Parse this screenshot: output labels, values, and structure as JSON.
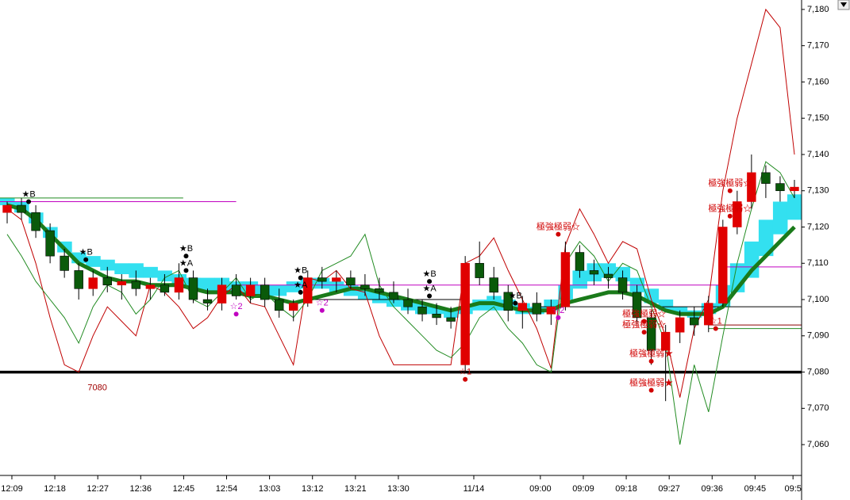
{
  "chart_data": {
    "type": "candlestick",
    "xlim": [
      -0.5,
      55.5
    ],
    "ylim": [
      7051.5,
      7182.6
    ],
    "yticks": [
      {
        "value": 7060,
        "label": "7,060"
      },
      {
        "value": 7070,
        "label": "7,070"
      },
      {
        "value": 7080,
        "label": "7,080"
      },
      {
        "value": 7090,
        "label": "7,090"
      },
      {
        "value": 7100,
        "label": "7,100"
      },
      {
        "value": 7110,
        "label": "7,110"
      },
      {
        "value": 7120,
        "label": "7,120"
      },
      {
        "value": 7130,
        "label": "7,130"
      },
      {
        "value": 7140,
        "label": "7,140"
      },
      {
        "value": 7150,
        "label": "7,150"
      },
      {
        "value": 7160,
        "label": "7,160"
      },
      {
        "value": 7170,
        "label": "7,170"
      },
      {
        "value": 7180,
        "label": "7,180"
      }
    ],
    "xticks": [
      {
        "value": 0.33,
        "label": "12:09"
      },
      {
        "value": 3.33,
        "label": "12:18"
      },
      {
        "value": 6.33,
        "label": "12:27"
      },
      {
        "value": 9.33,
        "label": "12:36"
      },
      {
        "value": 12.33,
        "label": "12:45"
      },
      {
        "value": 15.33,
        "label": "12:54"
      },
      {
        "value": 18.33,
        "label": "13:03"
      },
      {
        "value": 21.33,
        "label": "13:12"
      },
      {
        "value": 24.33,
        "label": "13:21"
      },
      {
        "value": 27.33,
        "label": "13:30"
      },
      {
        "value": 32.6,
        "label": "11/14"
      },
      {
        "value": 37.25,
        "label": "09:00"
      },
      {
        "value": 40.25,
        "label": "09:09"
      },
      {
        "value": 43.25,
        "label": "09:18"
      },
      {
        "value": 46.25,
        "label": "09:27"
      },
      {
        "value": 49.25,
        "label": "09:36"
      },
      {
        "value": 52.25,
        "label": "09:45"
      },
      {
        "value": 54.9,
        "label": "09:5"
      }
    ],
    "up_color": "#e00000",
    "down_color": "#0a5a0a",
    "ohlc": [
      [
        7124,
        7127,
        7121,
        7126
      ],
      [
        7126,
        7128,
        7122,
        7124
      ],
      [
        7124,
        7126,
        7117,
        7119
      ],
      [
        7119,
        7121,
        7110,
        7112
      ],
      [
        7112,
        7114,
        7106,
        7108
      ],
      [
        7108,
        7110,
        7100,
        7103
      ],
      [
        7103,
        7108,
        7101,
        7106
      ],
      [
        7106,
        7109,
        7102,
        7104
      ],
      [
        7104,
        7107,
        7100,
        7105
      ],
      [
        7105,
        7108,
        7101,
        7103
      ],
      [
        7103,
        7106,
        7100,
        7104
      ],
      [
        7104,
        7107,
        7101,
        7102
      ],
      [
        7102,
        7110,
        7100,
        7106
      ],
      [
        7106,
        7108,
        7099,
        7100
      ],
      [
        7100,
        7103,
        7097,
        7099
      ],
      [
        7099,
        7106,
        7097,
        7104
      ],
      [
        7104,
        7107,
        7100,
        7101
      ],
      [
        7101,
        7106,
        7099,
        7104
      ],
      [
        7104,
        7106,
        7098,
        7100
      ],
      [
        7100,
        7103,
        7095,
        7097
      ],
      [
        7097,
        7100,
        7094,
        7099
      ],
      [
        7099,
        7108,
        7098,
        7106
      ],
      [
        7106,
        7109,
        7103,
        7105
      ],
      [
        7105,
        7108,
        7102,
        7106
      ],
      [
        7106,
        7108,
        7103,
        7104
      ],
      [
        7104,
        7107,
        7101,
        7103
      ],
      [
        7103,
        7106,
        7100,
        7102
      ],
      [
        7102,
        7105,
        7099,
        7100
      ],
      [
        7100,
        7103,
        7096,
        7098
      ],
      [
        7098,
        7100,
        7094,
        7096
      ],
      [
        7096,
        7099,
        7093,
        7095
      ],
      [
        7095,
        7098,
        7092,
        7094
      ],
      [
        7082,
        7112,
        7080,
        7110
      ],
      [
        7110,
        7116,
        7104,
        7106
      ],
      [
        7106,
        7109,
        7100,
        7102
      ],
      [
        7102,
        7104,
        7094,
        7097
      ],
      [
        7097,
        7101,
        7092,
        7099
      ],
      [
        7099,
        7102,
        7094,
        7096
      ],
      [
        7096,
        7100,
        7093,
        7098
      ],
      [
        7098,
        7116,
        7097,
        7113
      ],
      [
        7113,
        7115,
        7106,
        7108
      ],
      [
        7108,
        7111,
        7104,
        7107
      ],
      [
        7107,
        7109,
        7103,
        7106
      ],
      [
        7106,
        7108,
        7100,
        7102
      ],
      [
        7102,
        7104,
        7093,
        7095
      ],
      [
        7095,
        7097,
        7082,
        7086
      ],
      [
        7086,
        7093,
        7072,
        7091
      ],
      [
        7091,
        7097,
        7088,
        7095
      ],
      [
        7095,
        7098,
        7090,
        7093
      ],
      [
        7093,
        7101,
        7091,
        7099
      ],
      [
        7099,
        7122,
        7098,
        7120
      ],
      [
        7120,
        7130,
        7118,
        7127
      ],
      [
        7127,
        7140,
        7125,
        7135
      ],
      [
        7135,
        7137,
        7128,
        7132
      ],
      [
        7132,
        7134,
        7127,
        7130
      ],
      [
        7130,
        7133,
        7128,
        7131
      ]
    ],
    "cloud": {
      "color": "#33e0f0",
      "top": [
        7128,
        7127,
        7124,
        7120,
        7116,
        7113,
        7112,
        7111,
        7110,
        7110,
        7109,
        7108,
        7107,
        7106,
        7106,
        7106,
        7105,
        7105,
        7104,
        7104,
        7105,
        7106,
        7106,
        7105,
        7104,
        7103,
        7102,
        7101,
        7100,
        7099,
        7098,
        7097,
        7098,
        7100,
        7101,
        7100,
        7099,
        7098,
        7100,
        7104,
        7108,
        7110,
        7110,
        7109,
        7106,
        7103,
        7100,
        7098,
        7097,
        7099,
        7104,
        7110,
        7116,
        7122,
        7127,
        7129
      ],
      "bottom": [
        7126,
        7124,
        7121,
        7117,
        7113,
        7110,
        7109,
        7108,
        7107,
        7106,
        7106,
        7105,
        7104,
        7103,
        7102,
        7102,
        7102,
        7101,
        7101,
        7101,
        7102,
        7103,
        7103,
        7102,
        7101,
        7100,
        7099,
        7098,
        7097,
        7096,
        7096,
        7095,
        7096,
        7097,
        7097,
        7097,
        7096,
        7096,
        7097,
        7100,
        7103,
        7105,
        7106,
        7105,
        7102,
        7099,
        7097,
        7096,
        7095,
        7096,
        7098,
        7102,
        7106,
        7112,
        7118,
        7122
      ]
    },
    "lines": [
      {
        "color": "#1a7a1a",
        "values": [
          7126,
          7125,
          7122,
          7118,
          7114,
          7110,
          7108,
          7106,
          7105,
          7105,
          7104,
          7104,
          7104,
          7103,
          7102,
          7102,
          7102,
          7101,
          7101,
          7100,
          7099,
          7100,
          7101,
          7102,
          7103,
          7103,
          7102,
          7101,
          7100,
          7099,
          7098,
          7097,
          7098,
          7099,
          7099,
          7098,
          7097,
          7097,
          7097,
          7099,
          7100,
          7101,
          7102,
          7102,
          7101,
          7099,
          7097,
          7096,
          7096,
          7096,
          7098,
          7103,
          7108,
          7112,
          7116,
          7120
        ]
      },
      {
        "color": "#c00000",
        "values": [
          7125,
          7122,
          7110,
          7095,
          7082,
          7080,
          7090,
          7098,
          7094,
          7090,
          7104,
          7102,
          7098,
          7092,
          7095,
          7101,
          7104,
          7099,
          7098,
          7090,
          7082,
          7106,
          7105,
          7108,
          7103,
          7102,
          7090,
          7082,
          7082,
          7082,
          7082,
          7082,
          7110,
          7112,
          7117,
          7108,
          7100,
          7092,
          7081,
          7115,
          7125,
          7118,
          7110,
          7116,
          7114,
          7100,
          7090,
          7073,
          7092,
          7100,
          7130,
          7150,
          7165,
          7180,
          7175,
          7140
        ]
      },
      {
        "color": "#228b22",
        "values": [
          7118,
          7112,
          7105,
          7100,
          7095,
          7088,
          7098,
          7104,
          7102,
          7096,
          7100,
          7106,
          7108,
          7100,
          7098,
          7102,
          7106,
          7100,
          7102,
          7098,
          7095,
          7100,
          7108,
          7110,
          7112,
          7118,
          7104,
          7098,
          7094,
          7090,
          7086,
          7084,
          7088,
          7095,
          7098,
          7092,
          7088,
          7082,
          7080,
          7110,
          7116,
          7112,
          7105,
          7110,
          7108,
          7098,
          7088,
          7060,
          7082,
          7069,
          7090,
          7110,
          7125,
          7138,
          7135,
          7128
        ]
      }
    ],
    "hlines": [
      {
        "value": 7080,
        "color": "#000000",
        "xrange": [
          -0.5,
          55.5
        ]
      },
      {
        "value": 7104,
        "color": "#c000c0",
        "xrange": [
          16,
          50
        ]
      },
      {
        "value": 7100,
        "color": "#000000",
        "xrange": [
          21,
          32
        ]
      },
      {
        "value": 7098,
        "color": "#000000",
        "xrange": [
          37,
          55.5
        ]
      },
      {
        "value": 7093,
        "color": "#8b0000",
        "xrange": [
          49,
          55.5
        ]
      },
      {
        "value": 7092,
        "color": "#228b22",
        "xrange": [
          49,
          55.5
        ]
      },
      {
        "value": 7109,
        "color": "#c000c0",
        "xrange": [
          50,
          55.5
        ]
      },
      {
        "value": 7128,
        "color": "#228b22",
        "xrange": [
          -0.5,
          12.3
        ]
      },
      {
        "value": 7127,
        "color": "#c000c0",
        "xrange": [
          -0.5,
          16
        ]
      }
    ],
    "annotations": [
      {
        "x": 1.5,
        "y": 7127,
        "text": "★B",
        "color": "#000000"
      },
      {
        "x": 5.5,
        "y": 7111,
        "text": "★B",
        "color": "#000000"
      },
      {
        "x": 12.5,
        "y": 7112,
        "text": "★B",
        "color": "#000000"
      },
      {
        "x": 12.5,
        "y": 7108,
        "text": "★A",
        "color": "#000000"
      },
      {
        "x": 20.5,
        "y": 7106,
        "text": "★B",
        "color": "#000000"
      },
      {
        "x": 20.5,
        "y": 7102,
        "text": "★A",
        "color": "#000000"
      },
      {
        "x": 29.5,
        "y": 7105,
        "text": "★B",
        "color": "#000000"
      },
      {
        "x": 29.5,
        "y": 7101,
        "text": "★A",
        "color": "#000000"
      },
      {
        "x": 35.5,
        "y": 7099,
        "text": "★B",
        "color": "#000000"
      },
      {
        "x": 16,
        "y": 7096,
        "text": "☆2",
        "color": "#c000c0"
      },
      {
        "x": 22,
        "y": 7097,
        "text": "☆2",
        "color": "#c000c0"
      },
      {
        "x": 38.5,
        "y": 7095,
        "text": "☆2",
        "color": "#c000c0"
      },
      {
        "x": 32,
        "y": 7078,
        "text": "☆1",
        "color": "#d00000"
      },
      {
        "x": 49.5,
        "y": 7092,
        "text": "☆1",
        "color": "#d00000"
      },
      {
        "x": 38.5,
        "y": 7118,
        "text": "極強極弱☆",
        "color": "#d00000"
      },
      {
        "x": 44.5,
        "y": 7094,
        "text": "極強極弱☆",
        "color": "#d00000"
      },
      {
        "x": 44.5,
        "y": 7091,
        "text": "極強極弱☆",
        "color": "#d00000"
      },
      {
        "x": 45,
        "y": 7083,
        "text": "極強極弱★",
        "color": "#d00000"
      },
      {
        "x": 45,
        "y": 7075,
        "text": "極強極弱★",
        "color": "#d00000"
      },
      {
        "x": 50.5,
        "y": 7130,
        "text": "極強極弱☆",
        "color": "#d00000"
      },
      {
        "x": 50.5,
        "y": 7123,
        "text": "極強極弱☆",
        "color": "#d00000"
      }
    ]
  }
}
